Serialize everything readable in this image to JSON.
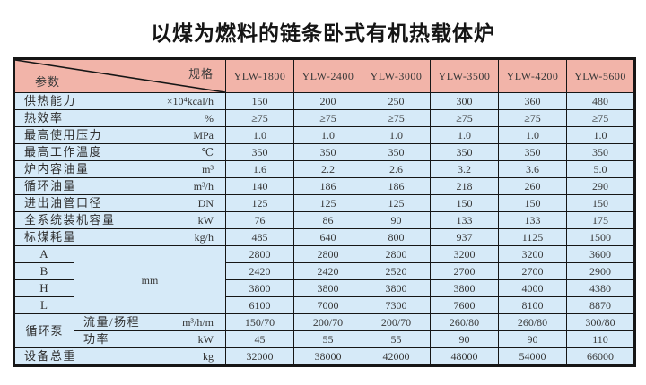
{
  "title": "以煤为燃料的链条卧式有机热载体炉",
  "colors": {
    "header_bg": "#f2b4a9",
    "cell_bg": "#d6eaf8",
    "border": "#161616",
    "text": "#383838"
  },
  "table": {
    "corner": {
      "top_right": "规格",
      "bottom_left": "参数"
    },
    "models": [
      "YLW-1800",
      "YLW-2400",
      "YLW-3000",
      "YLW-3500",
      "YLW-4200",
      "YLW-5600"
    ],
    "rows": [
      {
        "label": "供热能力",
        "unit": "×10⁴kcal/h",
        "values": [
          "150",
          "200",
          "250",
          "300",
          "360",
          "480"
        ]
      },
      {
        "label": "热效率",
        "unit": "%",
        "values": [
          "≥75",
          "≥75",
          "≥75",
          "≥75",
          "≥75",
          "≥75"
        ]
      },
      {
        "label": "最高使用压力",
        "unit": "MPa",
        "values": [
          "1.0",
          "1.0",
          "1.0",
          "1.0",
          "1.0",
          "1.0"
        ]
      },
      {
        "label": "最高工作温度",
        "unit": "℃",
        "values": [
          "350",
          "350",
          "350",
          "350",
          "350",
          "350"
        ]
      },
      {
        "label": "炉内容油量",
        "unit": "m³",
        "values": [
          "1.6",
          "2.2",
          "2.6",
          "3.2",
          "3.6",
          "5.0"
        ]
      },
      {
        "label": "循环油量",
        "unit": "m³/h",
        "values": [
          "140",
          "186",
          "186",
          "218",
          "260",
          "290"
        ]
      },
      {
        "label": "进出油管口径",
        "unit": "DN",
        "values": [
          "125",
          "125",
          "125",
          "150",
          "150",
          "150"
        ]
      },
      {
        "label": "全系统装机容量",
        "unit": "kW",
        "values": [
          "76",
          "86",
          "90",
          "133",
          "133",
          "175"
        ]
      },
      {
        "label": "标煤耗量",
        "unit": "kg/h",
        "values": [
          "485",
          "640",
          "800",
          "937",
          "1125",
          "1500"
        ]
      }
    ],
    "dimensions": {
      "unit": "mm",
      "rows": [
        {
          "label": "A",
          "values": [
            "2800",
            "2800",
            "2800",
            "3200",
            "3200",
            "3600"
          ]
        },
        {
          "label": "B",
          "values": [
            "2420",
            "2420",
            "2520",
            "2700",
            "2700",
            "2900"
          ]
        },
        {
          "label": "H",
          "values": [
            "3800",
            "3800",
            "3800",
            "3800",
            "4000",
            "4380"
          ]
        },
        {
          "label": "L",
          "values": [
            "6100",
            "7000",
            "7300",
            "7600",
            "8100",
            "8870"
          ]
        }
      ]
    },
    "pump": {
      "label": "循环泵",
      "rows": [
        {
          "label": "流量/扬程",
          "unit": "m³/h/m",
          "values": [
            "150/70",
            "200/70",
            "200/70",
            "260/80",
            "260/80",
            "300/80"
          ]
        },
        {
          "label": "功率",
          "unit": "kW",
          "values": [
            "45",
            "55",
            "55",
            "90",
            "90",
            "110"
          ]
        }
      ]
    },
    "total": {
      "label": "设备总重",
      "unit": "kg",
      "values": [
        "32000",
        "38000",
        "42000",
        "48000",
        "54000",
        "66000"
      ]
    }
  }
}
